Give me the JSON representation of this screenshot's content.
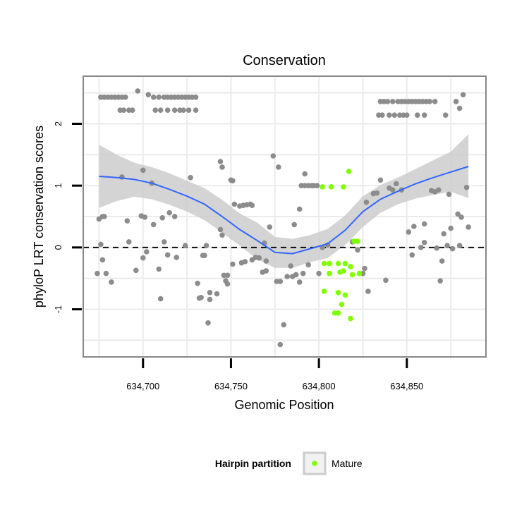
{
  "chart_data": {
    "type": "scatter",
    "title": "Conservation",
    "xlabel": "Genomic Position",
    "ylabel": "phyloP LRT conservation scores",
    "xlim": [
      634666,
      634895
    ],
    "ylim": [
      -1.77,
      2.77
    ],
    "x_ticks": [
      634700,
      634750,
      634800,
      634850
    ],
    "x_tick_labels": [
      "634,700",
      "634,750",
      "634,800",
      "634,850"
    ],
    "y_ticks": [
      -1,
      0,
      1,
      2
    ],
    "y_tick_labels": [
      "-1",
      "0",
      "1",
      "2"
    ],
    "grid": true,
    "reference_line": {
      "y": 0,
      "style": "dashed"
    },
    "legend": {
      "title": "Hairpin partition",
      "position": "bottom",
      "entries": [
        "Mature"
      ]
    },
    "colors": {
      "other": "#8c8c8c",
      "Mature": "#7fff00",
      "smooth": "#3366ff",
      "ribbon": "#cccccc",
      "panel_border": "#888888",
      "grid": "#ebebeb"
    },
    "series": [
      {
        "name": "",
        "color": "#8c8c8c",
        "points": [
          [
            634676,
            2.43
          ],
          [
            634678,
            2.43
          ],
          [
            634680,
            2.43
          ],
          [
            634682,
            2.43
          ],
          [
            634684,
            2.43
          ],
          [
            634686,
            2.43
          ],
          [
            634688,
            2.43
          ],
          [
            634690,
            2.43
          ],
          [
            634687,
            2.22
          ],
          [
            634689,
            2.22
          ],
          [
            634692,
            2.22
          ],
          [
            634694,
            2.22
          ],
          [
            634697,
            2.53
          ],
          [
            634703,
            2.47
          ],
          [
            634706,
            2.43
          ],
          [
            634709,
            2.43
          ],
          [
            634712,
            2.43
          ],
          [
            634714,
            2.43
          ],
          [
            634716,
            2.43
          ],
          [
            634718,
            2.43
          ],
          [
            634720,
            2.43
          ],
          [
            634722,
            2.43
          ],
          [
            634724,
            2.43
          ],
          [
            634726,
            2.43
          ],
          [
            634728,
            2.43
          ],
          [
            634730,
            2.43
          ],
          [
            634707,
            2.22
          ],
          [
            634710,
            2.22
          ],
          [
            634714,
            2.22
          ],
          [
            634718,
            2.22
          ],
          [
            634721,
            2.22
          ],
          [
            634723,
            2.22
          ],
          [
            634726,
            2.22
          ],
          [
            634730,
            2.22
          ],
          [
            634835,
            2.36
          ],
          [
            634837,
            2.36
          ],
          [
            634839,
            2.36
          ],
          [
            634842,
            2.36
          ],
          [
            634845,
            2.36
          ],
          [
            634847,
            2.36
          ],
          [
            634849,
            2.36
          ],
          [
            634851,
            2.36
          ],
          [
            634853,
            2.36
          ],
          [
            634855,
            2.36
          ],
          [
            634857,
            2.36
          ],
          [
            634859,
            2.36
          ],
          [
            634861,
            2.36
          ],
          [
            634863,
            2.36
          ],
          [
            634866,
            2.36
          ],
          [
            634834,
            2.14
          ],
          [
            634836,
            2.14
          ],
          [
            634840,
            2.14
          ],
          [
            634843,
            2.14
          ],
          [
            634846,
            2.14
          ],
          [
            634848,
            2.14
          ],
          [
            634850,
            2.14
          ],
          [
            634856,
            2.14
          ],
          [
            634860,
            2.14
          ],
          [
            634872,
            2.14
          ],
          [
            634878,
            2.36
          ],
          [
            634882,
            2.47
          ],
          [
            634880,
            2.25
          ],
          [
            634675,
            0.46
          ],
          [
            634677,
            0.5
          ],
          [
            634678,
            0.5
          ],
          [
            634676,
            0.05
          ],
          [
            634677,
            -0.2
          ],
          [
            634674,
            -0.42
          ],
          [
            634679,
            -0.42
          ],
          [
            634682,
            -0.56
          ],
          [
            634688,
            1.14
          ],
          [
            634691,
            0.43
          ],
          [
            634692,
            0.09
          ],
          [
            634696,
            -0.37
          ],
          [
            634699,
            0.51
          ],
          [
            634700,
            1.25
          ],
          [
            634701,
            0.49
          ],
          [
            634700,
            -0.17
          ],
          [
            634702,
            -0.07
          ],
          [
            634705,
            1.04
          ],
          [
            634706,
            0.37
          ],
          [
            634709,
            -0.35
          ],
          [
            634710,
            -0.83
          ],
          [
            634711,
            0.48
          ],
          [
            634712,
            0.09
          ],
          [
            634714,
            -0.12
          ],
          [
            634715,
            0.56
          ],
          [
            634718,
            0.5
          ],
          [
            634719,
            -0.16
          ],
          [
            634724,
            0.03
          ],
          [
            634727,
            1.13
          ],
          [
            634731,
            -0.58
          ],
          [
            634732,
            -0.82
          ],
          [
            634733,
            -0.81
          ],
          [
            634734,
            -0.13
          ],
          [
            634735,
            -0.13
          ],
          [
            634736,
            0.03
          ],
          [
            634738,
            -0.73
          ],
          [
            634738,
            -0.84
          ],
          [
            634737,
            -1.22
          ],
          [
            634742,
            -0.75
          ],
          [
            634744,
            1.39
          ],
          [
            634745,
            1.3
          ],
          [
            634744,
            0.29
          ],
          [
            634745,
            0.2
          ],
          [
            634746,
            -0.45
          ],
          [
            634747,
            -0.54
          ],
          [
            634748,
            -0.45
          ],
          [
            634748,
            -0.59
          ],
          [
            634750,
            1.09
          ],
          [
            634751,
            1.08
          ],
          [
            634751,
            -0.27
          ],
          [
            634752,
            0.7
          ],
          [
            634755,
            0.67
          ],
          [
            634757,
            0.68
          ],
          [
            634759,
            0.69
          ],
          [
            634761,
            0.7
          ],
          [
            634762,
            0.68
          ],
          [
            634756,
            -0.25
          ],
          [
            634758,
            -0.23
          ],
          [
            634762,
            -0.2
          ],
          [
            634764,
            -0.16
          ],
          [
            634766,
            -0.17
          ],
          [
            634770,
            -0.22
          ],
          [
            634768,
            -0.4
          ],
          [
            634770,
            -0.38
          ],
          [
            634769,
            0.07
          ],
          [
            634772,
            0.33
          ],
          [
            634774,
            1.48
          ],
          [
            634777,
            1.3
          ],
          [
            634776,
            -0.55
          ],
          [
            634778,
            -0.55
          ],
          [
            634780,
            -1.25
          ],
          [
            634778,
            -1.57
          ],
          [
            634782,
            -0.47
          ],
          [
            634784,
            -0.3
          ],
          [
            634785,
            -0.47
          ],
          [
            634787,
            -0.44
          ],
          [
            634789,
            -0.56
          ],
          [
            634786,
            0.37
          ],
          [
            634789,
            0.62
          ],
          [
            634790,
            1.0
          ],
          [
            634792,
            1.19
          ],
          [
            634792,
            1.0
          ],
          [
            634794,
            1.0
          ],
          [
            634796,
            1.0
          ],
          [
            634797,
            1.0
          ],
          [
            634799,
            1.0
          ],
          [
            634791,
            -0.42
          ],
          [
            634794,
            -0.28
          ],
          [
            634800,
            -0.42
          ],
          [
            634802,
            0.0
          ],
          [
            634805,
            0.04
          ],
          [
            634819,
            0.09
          ],
          [
            634822,
            -0.04
          ],
          [
            634825,
            -0.42
          ],
          [
            634826,
            -0.34
          ],
          [
            634827,
            0.73
          ],
          [
            634828,
            -0.71
          ],
          [
            634831,
            0.87
          ],
          [
            634833,
            0.88
          ],
          [
            634835,
            1.09
          ],
          [
            634838,
            -0.53
          ],
          [
            634840,
            0.96
          ],
          [
            634842,
            0.93
          ],
          [
            634844,
            1.03
          ],
          [
            634847,
            0.93
          ],
          [
            634851,
            0.25
          ],
          [
            634853,
            -0.12
          ],
          [
            634854,
            0.34
          ],
          [
            634858,
            0.0
          ],
          [
            634860,
            0.08
          ],
          [
            634860,
            0.38
          ],
          [
            634864,
            0.92
          ],
          [
            634866,
            0.9
          ],
          [
            634867,
            -0.01
          ],
          [
            634868,
            0.93
          ],
          [
            634869,
            -0.54
          ],
          [
            634870,
            -0.22
          ],
          [
            634871,
            0.22
          ],
          [
            634873,
            0.03
          ],
          [
            634874,
            0.86
          ],
          [
            634875,
            0.31
          ],
          [
            634876,
            -0.02
          ],
          [
            634879,
            0.54
          ],
          [
            634881,
            0.49
          ],
          [
            634884,
            0.97
          ],
          [
            634885,
            0.33
          ],
          [
            634880,
            0.03
          ]
        ]
      },
      {
        "name": "Mature",
        "color": "#7fff00",
        "points": [
          [
            634802,
            0.98
          ],
          [
            634807,
            0.98
          ],
          [
            634814,
            0.98
          ],
          [
            634817,
            1.23
          ],
          [
            634803,
            -0.26
          ],
          [
            634806,
            -0.26
          ],
          [
            634811,
            -0.26
          ],
          [
            634815,
            -0.26
          ],
          [
            634812,
            -0.4
          ],
          [
            634814,
            -0.38
          ],
          [
            634818,
            -0.31
          ],
          [
            634819,
            -0.44
          ],
          [
            634803,
            -0.71
          ],
          [
            634806,
            -0.42
          ],
          [
            634811,
            -0.73
          ],
          [
            634815,
            -0.77
          ],
          [
            634813,
            -0.92
          ],
          [
            634809,
            -1.06
          ],
          [
            634811,
            -1.06
          ],
          [
            634818,
            -1.15
          ],
          [
            634820,
            0.1
          ],
          [
            634822,
            0.1
          ],
          [
            634823,
            -0.42
          ]
        ]
      }
    ],
    "smooth": {
      "x": [
        634675,
        634685,
        634695,
        634705,
        634715,
        634725,
        634735,
        634745,
        634755,
        634765,
        634775,
        634785,
        634795,
        634805,
        634815,
        634825,
        634835,
        634845,
        634855,
        634865,
        634875,
        634885
      ],
      "y": [
        1.15,
        1.13,
        1.1,
        1.04,
        0.94,
        0.83,
        0.7,
        0.5,
        0.29,
        0.11,
        -0.08,
        -0.1,
        -0.02,
        0.06,
        0.28,
        0.58,
        0.78,
        0.91,
        1.03,
        1.13,
        1.22,
        1.31
      ],
      "lower": [
        0.64,
        0.75,
        0.82,
        0.78,
        0.69,
        0.58,
        0.44,
        0.24,
        0.03,
        -0.19,
        -0.33,
        -0.33,
        -0.24,
        -0.17,
        0.04,
        0.33,
        0.56,
        0.7,
        0.79,
        0.85,
        0.9,
        0.8
      ],
      "upper": [
        1.66,
        1.5,
        1.37,
        1.3,
        1.2,
        1.08,
        0.96,
        0.77,
        0.55,
        0.4,
        0.17,
        0.14,
        0.2,
        0.3,
        0.52,
        0.83,
        1.01,
        1.13,
        1.27,
        1.41,
        1.55,
        1.83
      ]
    }
  }
}
